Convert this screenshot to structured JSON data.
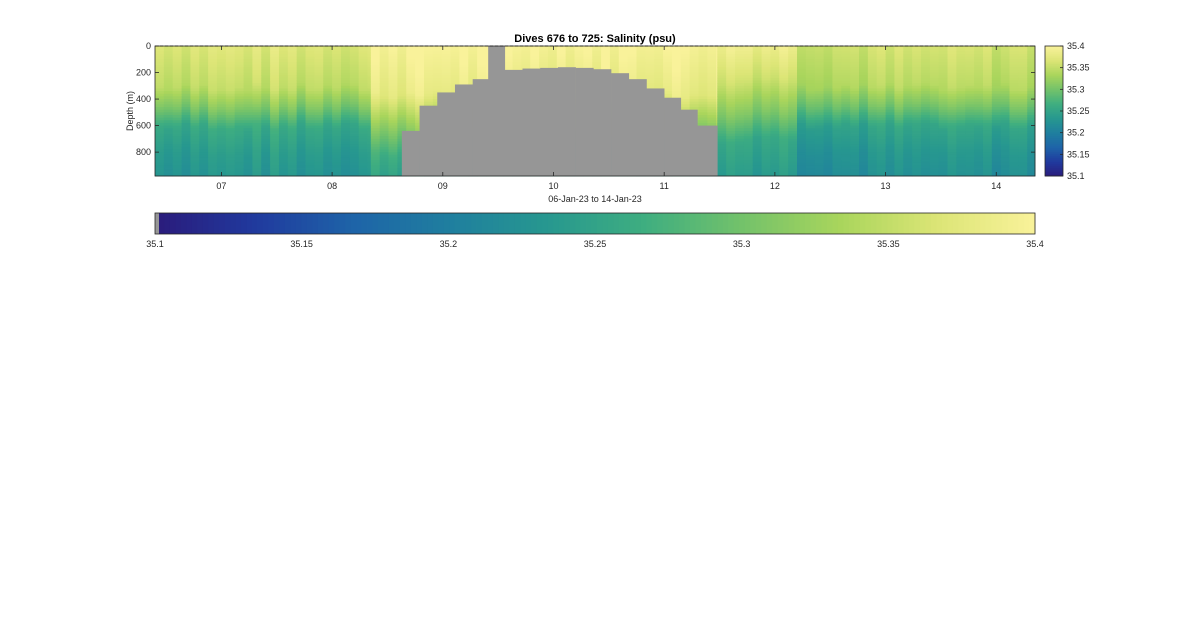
{
  "chart_data": {
    "type": "heatmap",
    "title": "Dives 676 to 725: Salinity (psu)",
    "xlabel": "06-Jan-23 to 14-Jan-23",
    "ylabel": "Depth (m)",
    "x_unit": "day of January 2023",
    "xlim": [
      6.4,
      14.35
    ],
    "ylim": [
      980,
      0
    ],
    "y_reversed": true,
    "x_ticks": [
      "07",
      "08",
      "09",
      "10",
      "11",
      "12",
      "13",
      "14"
    ],
    "x_tick_values": [
      7,
      8,
      9,
      10,
      11,
      12,
      13,
      14
    ],
    "y_ticks": [
      "0",
      "200",
      "400",
      "600",
      "800"
    ],
    "y_tick_values": [
      0,
      200,
      400,
      600,
      800
    ],
    "colorbar": {
      "range": [
        35.1,
        35.4
      ],
      "ticks": [
        "35.1",
        "35.15",
        "35.2",
        "35.25",
        "35.3",
        "35.35",
        "35.4"
      ],
      "tick_values": [
        35.1,
        35.15,
        35.2,
        35.25,
        35.3,
        35.35,
        35.4
      ],
      "colormap": [
        "#3e26a8",
        "#4544f0",
        "#2d7ff7",
        "#1fa6d8",
        "#0cb6b0",
        "#2fc18d",
        "#81cb5d",
        "#c2c440",
        "#f6ce3b",
        "#f9fb15"
      ],
      "display_colormap": [
        "#2a1c7c",
        "#203a9e",
        "#1e64a8",
        "#1f7f9f",
        "#27988f",
        "#3fae80",
        "#73c26a",
        "#a9d55c",
        "#dce576",
        "#f9f29a"
      ]
    },
    "bottom_colorbar": {
      "range": [
        35.1,
        35.4
      ],
      "ticks": [
        "35.1",
        "35.15",
        "35.2",
        "35.25",
        "35.3",
        "35.35",
        "35.4"
      ],
      "tick_values": [
        35.1,
        35.15,
        35.2,
        35.25,
        35.3,
        35.35,
        35.4
      ]
    },
    "missing_color": "#969696",
    "profile_bottoms": [
      {
        "x_start": 8.63,
        "x_end": 8.79,
        "bottom_m": 640
      },
      {
        "x_start": 8.79,
        "x_end": 8.95,
        "bottom_m": 450
      },
      {
        "x_start": 8.95,
        "x_end": 9.11,
        "bottom_m": 350
      },
      {
        "x_start": 9.11,
        "x_end": 9.27,
        "bottom_m": 290
      },
      {
        "x_start": 9.27,
        "x_end": 9.41,
        "bottom_m": 250
      },
      {
        "x_start": 9.41,
        "x_end": 9.56,
        "bottom_m": 0
      },
      {
        "x_start": 9.56,
        "x_end": 9.72,
        "bottom_m": 180
      },
      {
        "x_start": 9.72,
        "x_end": 9.88,
        "bottom_m": 170
      },
      {
        "x_start": 9.88,
        "x_end": 10.04,
        "bottom_m": 165
      },
      {
        "x_start": 10.04,
        "x_end": 10.2,
        "bottom_m": 160
      },
      {
        "x_start": 10.2,
        "x_end": 10.36,
        "bottom_m": 165
      },
      {
        "x_start": 10.36,
        "x_end": 10.52,
        "bottom_m": 175
      },
      {
        "x_start": 10.52,
        "x_end": 10.68,
        "bottom_m": 205
      },
      {
        "x_start": 10.68,
        "x_end": 10.84,
        "bottom_m": 250
      },
      {
        "x_start": 10.84,
        "x_end": 11.0,
        "bottom_m": 320
      },
      {
        "x_start": 11.0,
        "x_end": 11.15,
        "bottom_m": 390
      },
      {
        "x_start": 11.15,
        "x_end": 11.3,
        "bottom_m": 480
      },
      {
        "x_start": 11.3,
        "x_end": 11.48,
        "bottom_m": 600
      }
    ],
    "salinity_profile_segments": [
      {
        "x_start": 6.4,
        "x_end": 8.35,
        "layers": [
          {
            "depth": 0,
            "salinity": 35.37
          },
          {
            "depth": 300,
            "salinity": 35.35
          },
          {
            "depth": 450,
            "salinity": 35.31
          },
          {
            "depth": 600,
            "salinity": 35.26
          },
          {
            "depth": 800,
            "salinity": 35.24
          },
          {
            "depth": 980,
            "salinity": 35.23
          }
        ]
      },
      {
        "x_start": 8.35,
        "x_end": 11.48,
        "layers": [
          {
            "depth": 0,
            "salinity": 35.4
          },
          {
            "depth": 350,
            "salinity": 35.38
          },
          {
            "depth": 550,
            "salinity": 35.33
          },
          {
            "depth": 800,
            "salinity": 35.27
          },
          {
            "depth": 980,
            "salinity": 35.25
          }
        ]
      },
      {
        "x_start": 11.48,
        "x_end": 12.2,
        "layers": [
          {
            "depth": 0,
            "salinity": 35.39
          },
          {
            "depth": 250,
            "salinity": 35.36
          },
          {
            "depth": 500,
            "salinity": 35.31
          },
          {
            "depth": 700,
            "salinity": 35.26
          },
          {
            "depth": 980,
            "salinity": 35.24
          }
        ]
      },
      {
        "x_start": 12.2,
        "x_end": 14.35,
        "layers": [
          {
            "depth": 0,
            "salinity": 35.36
          },
          {
            "depth": 300,
            "salinity": 35.34
          },
          {
            "depth": 450,
            "salinity": 35.3
          },
          {
            "depth": 600,
            "salinity": 35.25
          },
          {
            "depth": 800,
            "salinity": 35.23
          },
          {
            "depth": 980,
            "salinity": 35.22
          }
        ]
      }
    ],
    "grid": false
  }
}
